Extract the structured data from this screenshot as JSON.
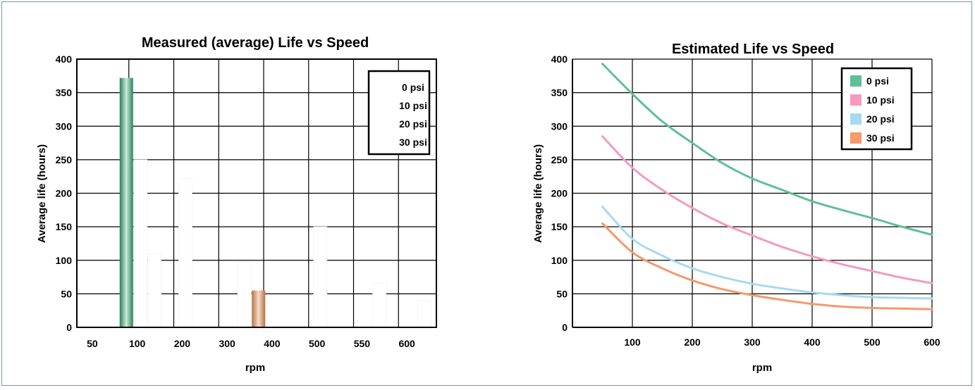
{
  "chart_data": [
    {
      "type": "bar",
      "title": "Measured (average) Life vs Speed",
      "xlabel": "rpm",
      "ylabel": "Average life (hours)",
      "ylim": [
        0,
        400
      ],
      "yticks": [
        "0",
        "50",
        "100",
        "150",
        "200",
        "250",
        "300",
        "350",
        "400"
      ],
      "categories": [
        "50",
        "100",
        "200",
        "300",
        "400",
        "500",
        "550",
        "600"
      ],
      "grid": true,
      "legend_position": "top-right",
      "series": [
        {
          "name": "0 psi",
          "color": "#5db08a",
          "values": [
            null,
            372,
            null,
            null,
            null,
            null,
            null,
            null
          ]
        },
        {
          "name": "10 psi",
          "color": "#ffffff",
          "values": [
            null,
            250,
            222,
            null,
            null,
            150,
            null,
            null
          ]
        },
        {
          "name": "20 psi",
          "color": "#ffffff",
          "values": [
            null,
            110,
            null,
            97,
            null,
            null,
            66,
            40
          ]
        },
        {
          "name": "30 psi",
          "color": "#d9a27d",
          "values": [
            null,
            null,
            null,
            55,
            null,
            null,
            null,
            null
          ]
        }
      ]
    },
    {
      "type": "line",
      "title": "Estimated Life vs Speed",
      "xlabel": "rpm",
      "ylabel": "Average life (hours)",
      "xlim": [
        0,
        600
      ],
      "ylim": [
        0,
        400
      ],
      "xticks": [
        "100",
        "200",
        "300",
        "400",
        "500",
        "600"
      ],
      "yticks": [
        "0",
        "50",
        "100",
        "150",
        "200",
        "250",
        "300",
        "350",
        "400"
      ],
      "grid": true,
      "legend_position": "top-right",
      "series": [
        {
          "name": "0 psi",
          "color": "#5fbf97",
          "x": [
            50,
            100,
            150,
            200,
            250,
            300,
            350,
            400,
            450,
            500,
            550,
            600
          ],
          "values": [
            393,
            348,
            307,
            275,
            245,
            222,
            205,
            188,
            175,
            163,
            150,
            138
          ]
        },
        {
          "name": "10 psi",
          "color": "#f59ac0",
          "x": [
            50,
            100,
            150,
            200,
            250,
            300,
            350,
            400,
            450,
            500,
            550,
            600
          ],
          "values": [
            285,
            238,
            205,
            178,
            155,
            137,
            120,
            106,
            94,
            84,
            74,
            66
          ]
        },
        {
          "name": "20 psi",
          "color": "#a9d9f0",
          "x": [
            50,
            100,
            150,
            200,
            250,
            300,
            350,
            400,
            450,
            500,
            550,
            600
          ],
          "values": [
            180,
            132,
            107,
            88,
            75,
            65,
            58,
            52,
            48,
            45,
            44,
            43
          ]
        },
        {
          "name": "30 psi",
          "color": "#f49a6c",
          "x": [
            50,
            100,
            150,
            200,
            250,
            300,
            350,
            400,
            450,
            500,
            550,
            600
          ],
          "values": [
            155,
            112,
            88,
            70,
            57,
            48,
            41,
            35,
            31,
            29,
            28,
            27
          ]
        }
      ]
    }
  ]
}
